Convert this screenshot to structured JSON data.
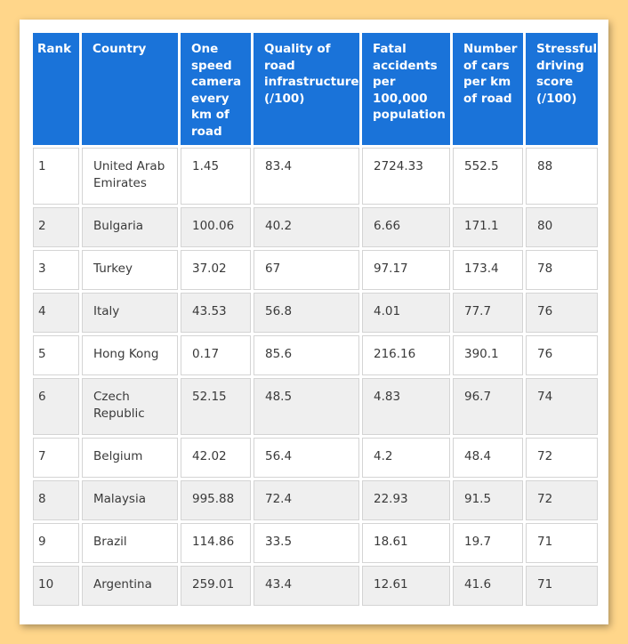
{
  "table": {
    "headers": [
      "Rank",
      "Country",
      "One speed camera every km of road",
      "Quality of road infrastructure (/100)",
      "Fatal accidents per 100,000 population",
      "Number of cars per km of road",
      "Stressful driving score (/100)"
    ],
    "rows": [
      [
        "1",
        "United Arab Emirates",
        "1.45",
        "83.4",
        "2724.33",
        "552.5",
        "88"
      ],
      [
        "2",
        "Bulgaria",
        "100.06",
        "40.2",
        "6.66",
        "171.1",
        "80"
      ],
      [
        "3",
        "Turkey",
        "37.02",
        "67",
        "97.17",
        "173.4",
        "78"
      ],
      [
        "4",
        "Italy",
        "43.53",
        "56.8",
        "4.01",
        "77.7",
        "76"
      ],
      [
        "5",
        "Hong Kong",
        "0.17",
        "85.6",
        "216.16",
        "390.1",
        "76"
      ],
      [
        "6",
        "Czech Republic",
        "52.15",
        "48.5",
        "4.83",
        "96.7",
        "74"
      ],
      [
        "7",
        "Belgium",
        "42.02",
        "56.4",
        "4.2",
        "48.4",
        "72"
      ],
      [
        "8",
        "Malaysia",
        "995.88",
        "72.4",
        "22.93",
        "91.5",
        "72"
      ],
      [
        "9",
        "Brazil",
        "114.86",
        "33.5",
        "18.61",
        "19.7",
        "71"
      ],
      [
        "10",
        "Argentina",
        "259.01",
        "43.4",
        "12.61",
        "41.6",
        "71"
      ]
    ]
  },
  "colors": {
    "header_bg": "#1a73d9",
    "page_bg": "#ffd68a",
    "alt_row_bg": "#efefef"
  }
}
